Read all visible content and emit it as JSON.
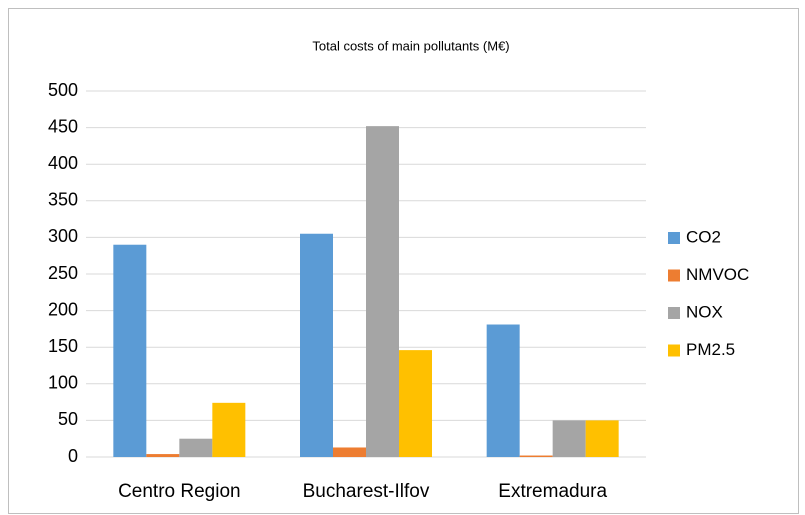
{
  "chart_data": {
    "type": "bar",
    "title": "Total costs of main pollutants (M€)",
    "categories": [
      "Centro Region",
      "Bucharest-Ilfov",
      "Extremadura"
    ],
    "series": [
      {
        "name": "CO2",
        "color": "#5b9bd5",
        "values": [
          290,
          305,
          181
        ]
      },
      {
        "name": "NMVOC",
        "color": "#ed7d31",
        "values": [
          4,
          13,
          2
        ]
      },
      {
        "name": "NOX",
        "color": "#a5a5a5",
        "values": [
          25,
          452,
          50
        ]
      },
      {
        "name": "PM2.5",
        "color": "#ffc000",
        "values": [
          74,
          146,
          50
        ]
      }
    ],
    "ylim": [
      0,
      500
    ],
    "yticks": [
      0,
      50,
      100,
      150,
      200,
      250,
      300,
      350,
      400,
      450,
      500
    ],
    "grid": true,
    "legend": "right"
  }
}
